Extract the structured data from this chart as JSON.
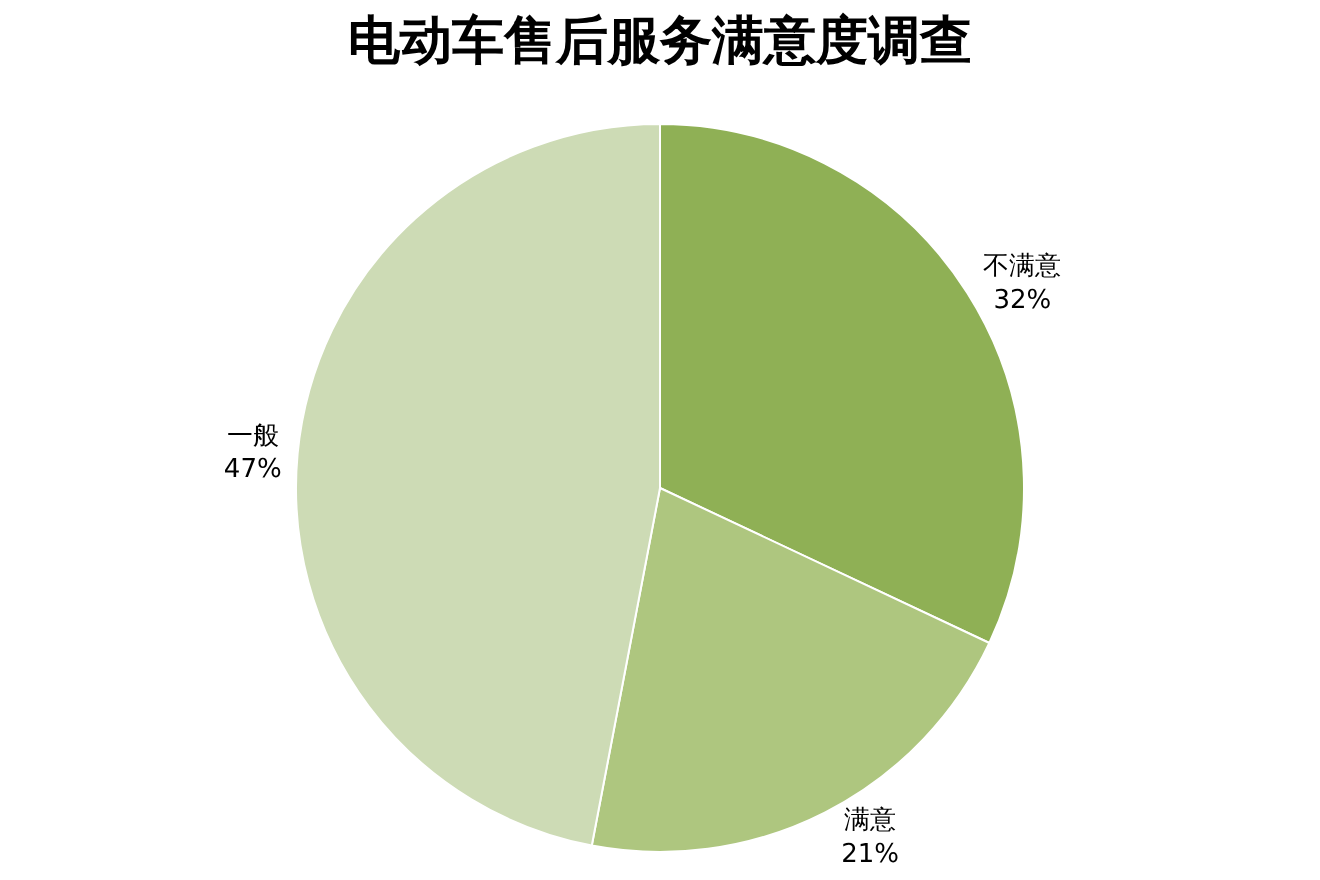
{
  "chart_data": {
    "type": "pie",
    "title": "电动车售后服务满意度调查",
    "categories": [
      "不满意",
      "满意",
      "一般"
    ],
    "values": [
      32,
      21,
      47
    ],
    "colors": [
      "#8fb055",
      "#aec67f",
      "#cddbb5"
    ],
    "value_labels": [
      "32%",
      "21%",
      "47%"
    ],
    "legend": false
  }
}
